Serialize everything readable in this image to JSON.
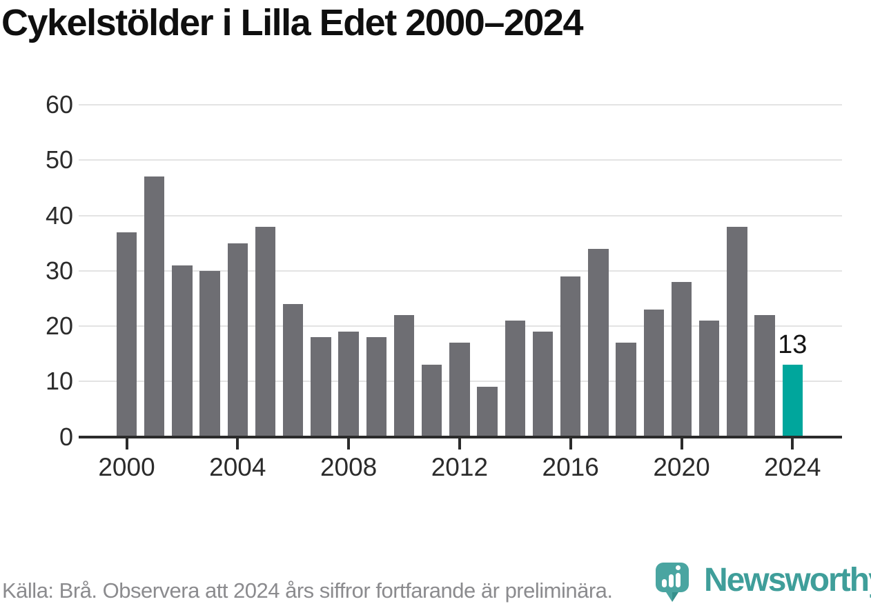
{
  "title": "Cykelstölder i Lilla Edet 2000–2024",
  "chart_data": {
    "type": "bar",
    "title": "Cykelstölder i Lilla Edet 2000–2024",
    "categories": [
      2000,
      2001,
      2002,
      2003,
      2004,
      2005,
      2006,
      2007,
      2008,
      2009,
      2010,
      2011,
      2012,
      2013,
      2014,
      2015,
      2016,
      2017,
      2018,
      2019,
      2020,
      2021,
      2022,
      2023,
      2024
    ],
    "values": [
      37,
      47,
      31,
      30,
      35,
      38,
      24,
      18,
      19,
      18,
      22,
      13,
      17,
      9,
      21,
      19,
      29,
      34,
      17,
      23,
      28,
      21,
      38,
      22,
      13
    ],
    "xlabel": "",
    "ylabel": "",
    "ylim": [
      0,
      60
    ],
    "yticks": [
      0,
      10,
      20,
      30,
      40,
      50,
      60
    ],
    "xtick_labels": [
      "2000",
      "2004",
      "2008",
      "2012",
      "2016",
      "2020",
      "2024"
    ],
    "grid": true,
    "legend": false,
    "bar_color": "#6e6e73",
    "grid_color": "#e3e3e3",
    "axis_color": "#2b2b2b",
    "tick_label_color": "#2b2b2b",
    "title_color": "#0f0f0f",
    "annotation_color": "#141414",
    "highlight": {
      "year": 2024,
      "value": 13,
      "label": "13",
      "color": "#00a69c"
    }
  },
  "footer": {
    "source_note": "Källa: Brå. Observera att 2024 års siffror fortfarande är preliminära.",
    "text_color": "#8b8b8e"
  },
  "branding": {
    "wordmark": "Newsworthy",
    "wordmark_color": "#3f9e9a",
    "pin_color": "#4aa5a1",
    "pin_dark_color": "#35908c",
    "pin_bars_color": "#ffffff"
  }
}
